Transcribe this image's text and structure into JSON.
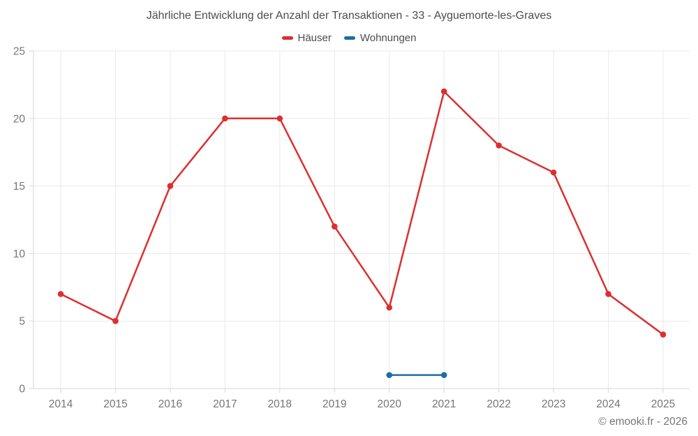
{
  "page": {
    "title": "Jährliche Entwicklung der Anzahl der Transaktionen - 33 - Ayguemorte-les-Graves",
    "footer": "© emooki.fr - 2026"
  },
  "chart_data": {
    "type": "line",
    "title": "Jährliche Entwicklung der Anzahl der Transaktionen - 33 - Ayguemorte-les-Graves",
    "categories": [
      "2014",
      "2015",
      "2016",
      "2017",
      "2018",
      "2019",
      "2020",
      "2021",
      "2022",
      "2023",
      "2024",
      "2025"
    ],
    "series": [
      {
        "name": "Häuser",
        "color": "#dc2f2f",
        "values": [
          7,
          5,
          15,
          20,
          20,
          12,
          6,
          22,
          18,
          16,
          7,
          4
        ]
      },
      {
        "name": "Wohnungen",
        "color": "#1c6ea4",
        "values": [
          null,
          null,
          null,
          null,
          null,
          null,
          1,
          1,
          null,
          null,
          null,
          null
        ]
      }
    ],
    "xlabel": "",
    "ylabel": "",
    "ylim": [
      0,
      25
    ],
    "ytick_step": 5,
    "grid": true,
    "legend_position": "top",
    "colors": {
      "grid": "#e9e9e9",
      "axis": "#d6d6d6",
      "tick_label": "#757575"
    }
  }
}
